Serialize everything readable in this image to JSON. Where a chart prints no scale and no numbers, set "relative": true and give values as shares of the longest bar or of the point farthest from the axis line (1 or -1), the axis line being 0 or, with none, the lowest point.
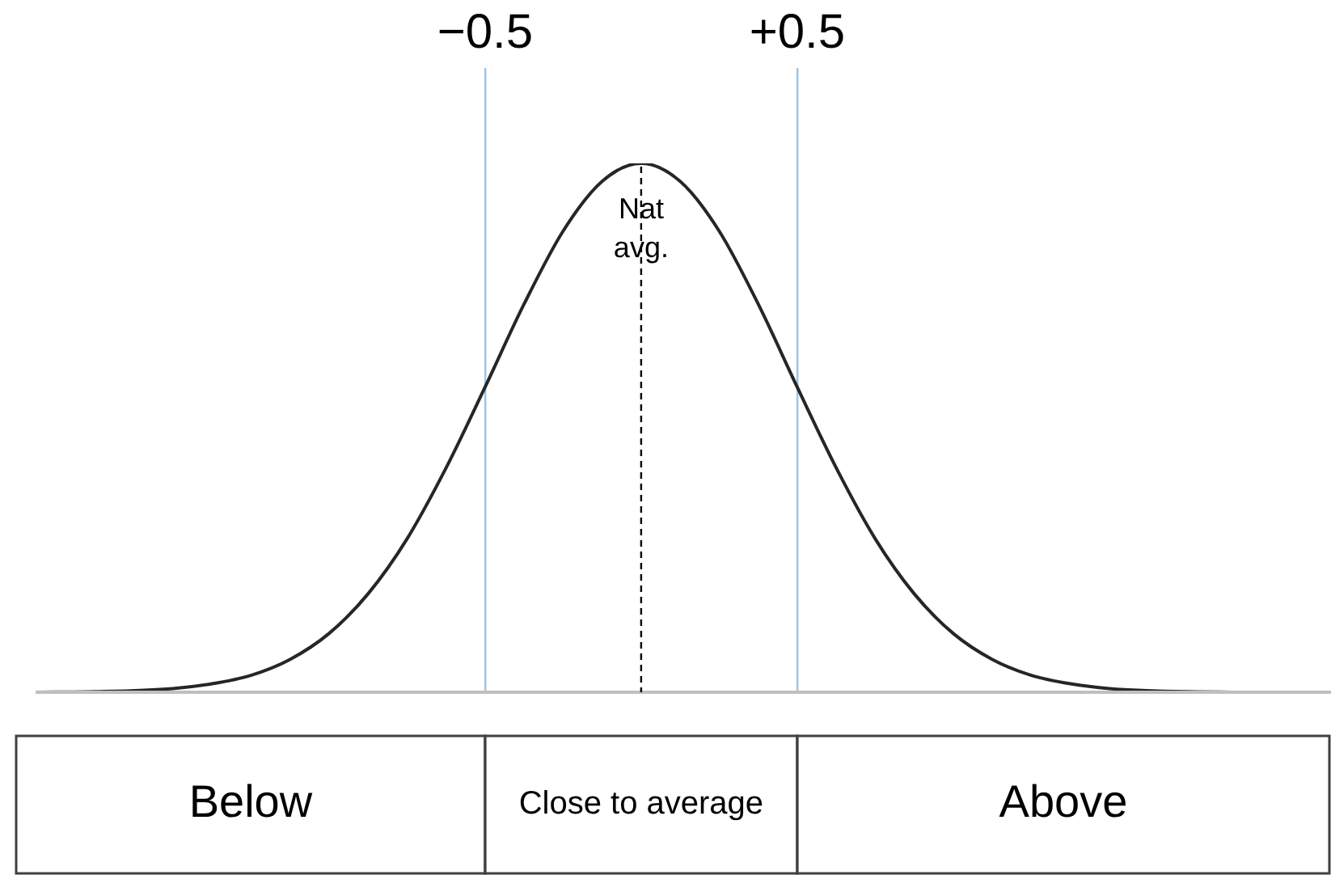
{
  "chart_data": {
    "type": "line",
    "relative": true,
    "x": [
      -1.94,
      -1.75,
      -1.5,
      -1.375,
      -1.25,
      -1.125,
      -1.0,
      -0.875,
      -0.75,
      -0.625,
      -0.5,
      -0.375,
      -0.25,
      -0.125,
      0,
      0.125,
      0.25,
      0.375,
      0.5,
      0.625,
      0.75,
      0.875,
      1.0,
      1.125,
      1.25,
      1.375,
      1.5,
      1.75,
      2.0,
      2.21
    ],
    "values": [
      0,
      0.001,
      0.007,
      0.016,
      0.032,
      0.062,
      0.111,
      0.186,
      0.29,
      0.424,
      0.577,
      0.734,
      0.872,
      0.966,
      1,
      0.966,
      0.872,
      0.734,
      0.577,
      0.424,
      0.29,
      0.186,
      0.111,
      0.062,
      0.032,
      0.016,
      0.007,
      0.001,
      0,
      0
    ],
    "color": "#262626",
    "marker": "none",
    "tick_labels": "x",
    "grid": "x",
    "legend": false,
    "xlim": [
      -1.94,
      2.21
    ],
    "xticks": [
      {
        "value": -0.5,
        "label": "−0.5"
      },
      {
        "value": 0.5,
        "label": "+0.5"
      }
    ],
    "ref_lines": [
      {
        "axis": "x",
        "value": 0,
        "label": "Nat avg.",
        "color": "#000000",
        "line_style": "dashed"
      }
    ],
    "annotations": [
      "Below",
      "Close to average",
      "Above"
    ]
  }
}
